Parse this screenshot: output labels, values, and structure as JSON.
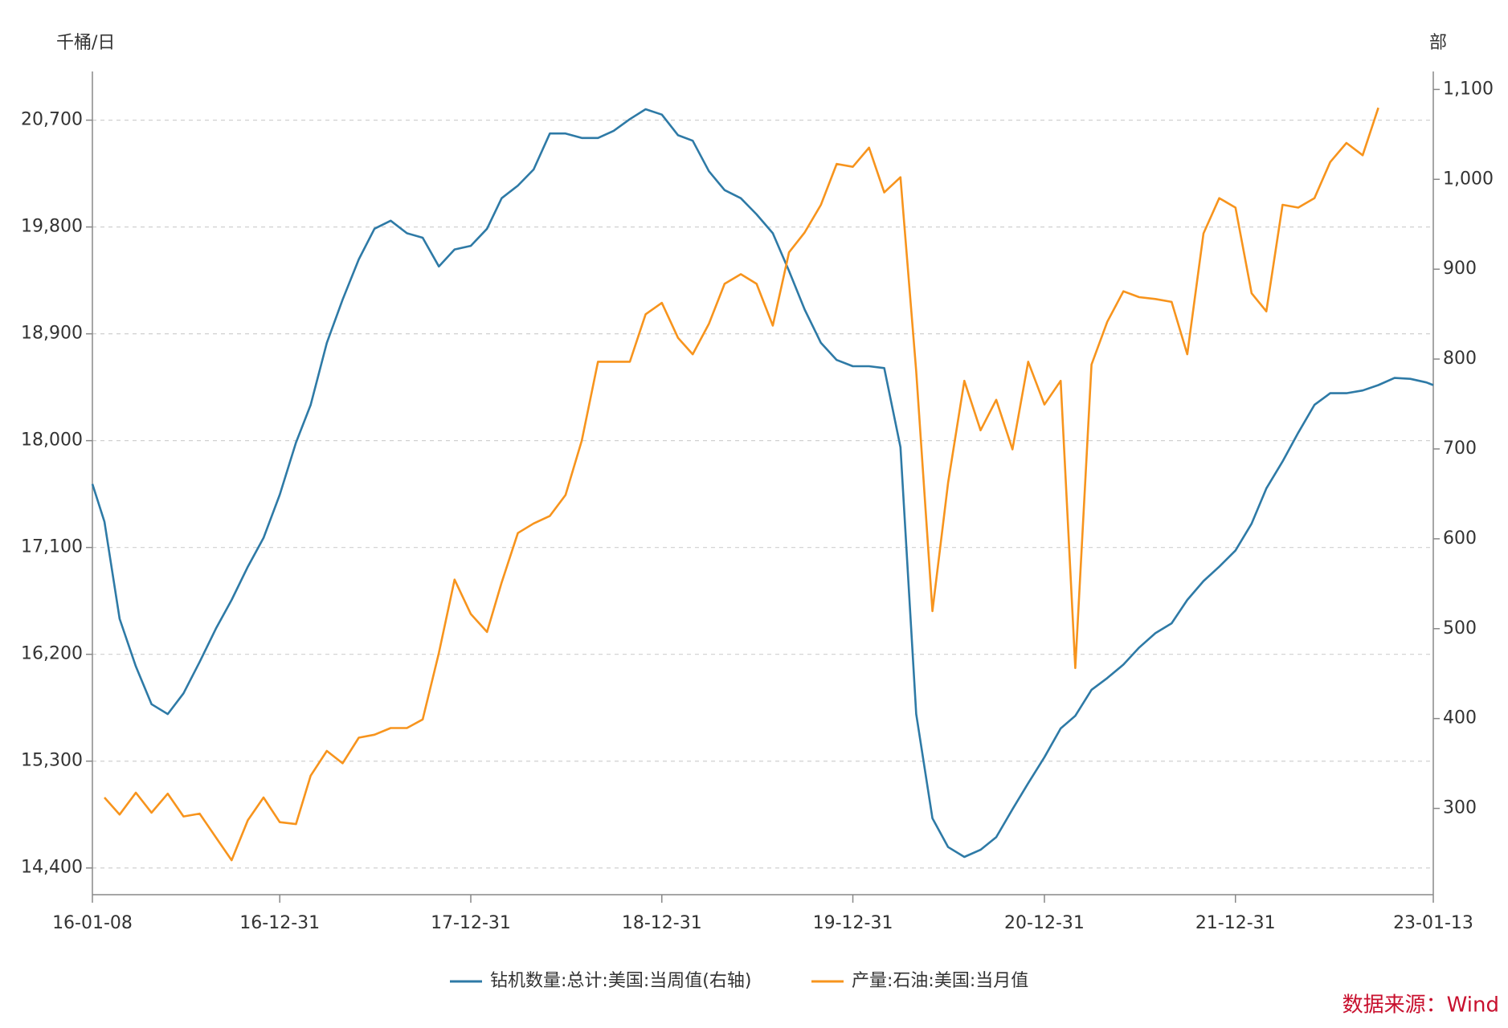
{
  "chart_data": {
    "type": "line",
    "y_label": "千桶/日",
    "y2_label": "部",
    "source": "数据来源：Wind",
    "grid": true,
    "legend": "bottom",
    "xlim": [
      "16-01-08",
      "23-01-13"
    ],
    "xticks": [
      "16-01-08",
      "16-12-31",
      "17-12-31",
      "18-12-31",
      "19-12-31",
      "20-12-31",
      "21-12-31",
      "23-01-13"
    ],
    "ylim": [
      14175,
      21110
    ],
    "yticks": [
      {
        "value": 14400,
        "label": "14,400"
      },
      {
        "value": 15300,
        "label": "15,300"
      },
      {
        "value": 16200,
        "label": "16,200"
      },
      {
        "value": 17100,
        "label": "17,100"
      },
      {
        "value": 18000,
        "label": "18,000"
      },
      {
        "value": 18900,
        "label": "18,900"
      },
      {
        "value": 19800,
        "label": "19,800"
      },
      {
        "value": 20700,
        "label": "20,700"
      }
    ],
    "y2lim": [
      204,
      1120
    ],
    "y2ticks": [
      300,
      400,
      500,
      600,
      700,
      800,
      900,
      {
        "value": 1000,
        "label": "1,000"
      },
      {
        "value": 1100,
        "label": "1,100"
      }
    ],
    "series": [
      {
        "name": "钻机数量:总计:美国:当周值(右轴)",
        "color": "#2e7aa6",
        "axis": "y2",
        "x": [
          "16-01-08",
          "16-01-31",
          "16-02-29",
          "16-03-31",
          "16-04-30",
          "16-05-31",
          "16-06-30",
          "16-07-31",
          "16-08-31",
          "16-09-30",
          "16-10-31",
          "16-11-30",
          "16-12-31",
          "17-01-31",
          "17-02-28",
          "17-03-31",
          "17-04-30",
          "17-05-31",
          "17-06-30",
          "17-07-31",
          "17-08-31",
          "17-09-30",
          "17-10-31",
          "17-11-30",
          "17-12-31",
          "18-01-31",
          "18-02-28",
          "18-03-31",
          "18-04-30",
          "18-05-31",
          "18-06-30",
          "18-07-31",
          "18-08-31",
          "18-09-30",
          "18-10-31",
          "18-11-30",
          "18-12-31",
          "19-01-31",
          "19-02-28",
          "19-03-31",
          "19-04-30",
          "19-05-31",
          "19-06-30",
          "19-07-31",
          "19-08-31",
          "19-09-30",
          "19-10-31",
          "19-11-30",
          "19-12-31",
          "20-01-31",
          "20-02-29",
          "20-03-31",
          "20-04-30",
          "20-05-31",
          "20-06-30",
          "20-07-31",
          "20-08-31",
          "20-09-30",
          "20-10-31",
          "20-11-30",
          "20-12-31",
          "21-01-31",
          "21-02-28",
          "21-03-31",
          "21-04-30",
          "21-05-31",
          "21-06-30",
          "21-07-31",
          "21-08-31",
          "21-09-30",
          "21-10-31",
          "21-11-30",
          "21-12-31",
          "22-01-31",
          "22-02-28",
          "22-03-31",
          "22-04-30",
          "22-05-31",
          "22-06-30",
          "22-07-31",
          "22-08-31",
          "22-09-30",
          "22-10-31",
          "22-11-30",
          "22-12-31",
          "23-01-13"
        ],
        "values": [
          661,
          619,
          511,
          458,
          416,
          405,
          428,
          463,
          500,
          532,
          569,
          601,
          649,
          707,
          749,
          818,
          866,
          911,
          945,
          954,
          940,
          935,
          903,
          922,
          926,
          945,
          979,
          993,
          1011,
          1051,
          1051,
          1046,
          1046,
          1054,
          1067,
          1078,
          1072,
          1049,
          1043,
          1009,
          988,
          979,
          961,
          940,
          898,
          855,
          818,
          799,
          792,
          792,
          790,
          702,
          405,
          289,
          257,
          246,
          254,
          268,
          299,
          328,
          357,
          389,
          403,
          432,
          445,
          460,
          479,
          495,
          506,
          532,
          553,
          569,
          587,
          617,
          656,
          686,
          718,
          749,
          762,
          762,
          765,
          771,
          779,
          778,
          774,
          771
        ]
      },
      {
        "name": "产量:石油:美国:当月值",
        "color": "#f7941d",
        "x": [
          "16-01-31",
          "16-02-29",
          "16-03-31",
          "16-04-30",
          "16-05-31",
          "16-06-30",
          "16-07-31",
          "16-08-31",
          "16-09-30",
          "16-10-31",
          "16-11-30",
          "16-12-31",
          "17-01-31",
          "17-02-28",
          "17-03-31",
          "17-04-30",
          "17-05-31",
          "17-06-30",
          "17-07-31",
          "17-08-31",
          "17-09-30",
          "17-10-31",
          "17-11-30",
          "17-12-31",
          "18-01-31",
          "18-02-28",
          "18-03-31",
          "18-04-30",
          "18-05-31",
          "18-06-30",
          "18-07-31",
          "18-08-31",
          "18-09-30",
          "18-10-31",
          "18-11-30",
          "18-12-31",
          "19-01-31",
          "19-02-28",
          "19-03-31",
          "19-04-30",
          "19-05-31",
          "19-06-30",
          "19-07-31",
          "19-08-31",
          "19-09-30",
          "19-10-31",
          "19-11-30",
          "19-12-31",
          "20-01-31",
          "20-02-29",
          "20-03-31",
          "20-04-30",
          "20-05-31",
          "20-06-30",
          "20-07-31",
          "20-08-31",
          "20-09-30",
          "20-10-31",
          "20-11-30",
          "20-12-31",
          "21-01-31",
          "21-02-28",
          "21-03-31",
          "21-04-30",
          "21-05-31",
          "21-06-30",
          "21-07-31",
          "21-08-31",
          "21-09-30",
          "21-10-31",
          "21-11-30",
          "21-12-31",
          "22-01-31",
          "22-02-28",
          "22-03-31",
          "22-04-30",
          "22-05-31",
          "22-06-30",
          "22-07-31",
          "22-08-31",
          "22-09-30"
        ],
        "values": [
          14994,
          14850,
          15034,
          14866,
          15026,
          14834,
          14858,
          14658,
          14465,
          14802,
          14994,
          14786,
          14770,
          15178,
          15386,
          15282,
          15498,
          15523,
          15579,
          15579,
          15651,
          16212,
          16829,
          16540,
          16388,
          16805,
          17222,
          17302,
          17366,
          17542,
          17999,
          18665,
          18665,
          18665,
          19065,
          19161,
          18865,
          18728,
          18985,
          19321,
          19402,
          19321,
          18969,
          19586,
          19754,
          19987,
          20331,
          20307,
          20468,
          20091,
          20219,
          18584,
          16564,
          17646,
          18504,
          18087,
          18344,
          17927,
          18665,
          18304,
          18504,
          16084,
          18641,
          19001,
          19258,
          19209,
          19193,
          19169,
          18728,
          19746,
          20043,
          19963,
          19241,
          19089,
          19987,
          19963,
          20043,
          20347,
          20508,
          20404,
          20804
        ]
      }
    ]
  }
}
